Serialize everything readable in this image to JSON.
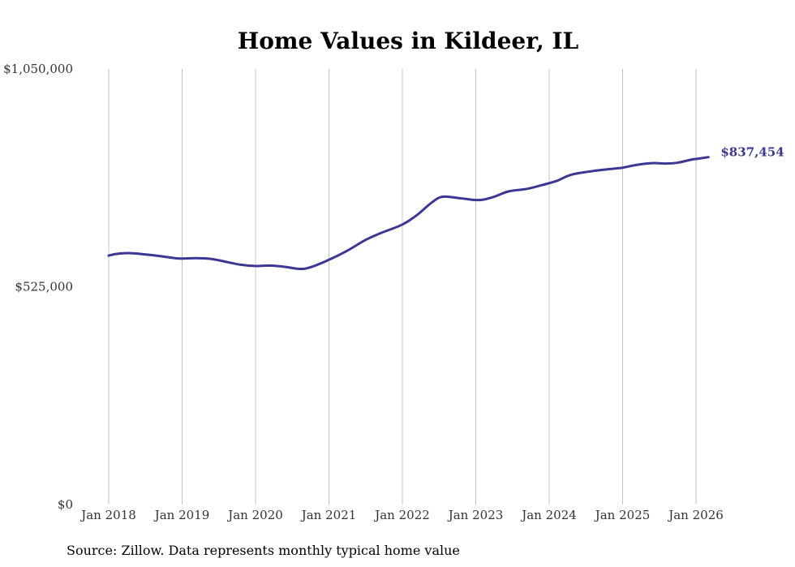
{
  "chart_data": {
    "type": "line",
    "title": "Home Values in Kildeer, IL",
    "source": "Source: Zillow. Data represents monthly typical home value",
    "xlabel": "",
    "ylabel": "",
    "ylim": [
      0,
      1050000
    ],
    "xlim": [
      2018.0,
      2026.0
    ],
    "y_ticks": [
      {
        "value": 0,
        "label": "$0"
      },
      {
        "value": 525000,
        "label": "$525,000"
      },
      {
        "value": 1050000,
        "label": "$1,050,000"
      }
    ],
    "x_ticks": [
      {
        "value": 2018,
        "label": "Jan 2018"
      },
      {
        "value": 2019,
        "label": "Jan 2019"
      },
      {
        "value": 2020,
        "label": "Jan 2020"
      },
      {
        "value": 2021,
        "label": "Jan 2021"
      },
      {
        "value": 2022,
        "label": "Jan 2022"
      },
      {
        "value": 2023,
        "label": "Jan 2023"
      },
      {
        "value": 2024,
        "label": "Jan 2024"
      },
      {
        "value": 2025,
        "label": "Jan 2025"
      },
      {
        "value": 2026,
        "label": "Jan 2026"
      }
    ],
    "grid": "vertical",
    "series": [
      {
        "name": "Typical home value",
        "color": "#3c3794",
        "end_label": "$837,454",
        "x": [
          2018.0,
          2018.1,
          2018.3,
          2018.6,
          2018.9,
          2019.0,
          2019.2,
          2019.4,
          2019.6,
          2019.8,
          2020.0,
          2020.2,
          2020.4,
          2020.6,
          2020.75,
          2021.0,
          2021.25,
          2021.5,
          2021.7,
          2022.0,
          2022.2,
          2022.4,
          2022.55,
          2022.8,
          2023.0,
          2023.1,
          2023.25,
          2023.45,
          2023.7,
          2023.9,
          2024.1,
          2024.3,
          2024.6,
          2024.9,
          2025.0,
          2025.2,
          2025.4,
          2025.6,
          2025.75,
          2025.95,
          2026.0,
          2026.17
        ],
        "values": [
          600000,
          604000,
          606000,
          601000,
          594000,
          593000,
          594000,
          592000,
          585000,
          578000,
          575000,
          576000,
          573000,
          568000,
          572000,
          590000,
          612000,
          638000,
          654000,
          675000,
          698000,
          728000,
          742000,
          738000,
          734000,
          735000,
          742000,
          755000,
          761000,
          770000,
          780000,
          795000,
          804000,
          810000,
          812000,
          819000,
          823000,
          822000,
          824000,
          832000,
          833000,
          837454
        ]
      }
    ]
  }
}
